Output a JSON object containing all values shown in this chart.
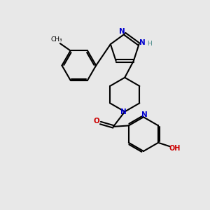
{
  "bg_color": "#e8e8e8",
  "bond_color": "#000000",
  "bond_width": 1.5,
  "atoms": {
    "N_blue": "#0000cc",
    "O_red": "#cc0000",
    "NH_teal": "#4a8a8a"
  },
  "xlim": [
    0.0,
    8.5
  ],
  "ylim": [
    0.5,
    10.5
  ]
}
